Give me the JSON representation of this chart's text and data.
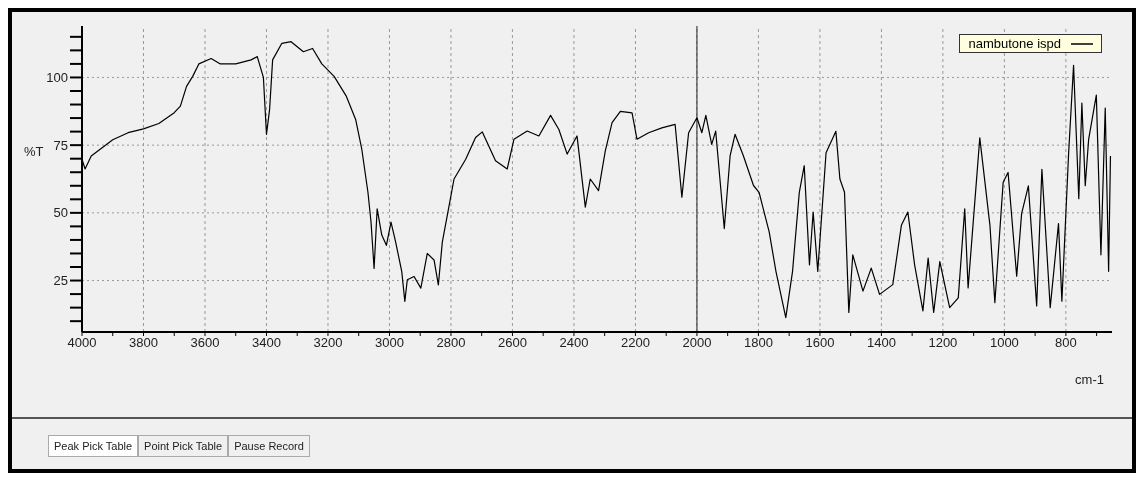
{
  "chart_data": {
    "type": "line",
    "xlabel": "cm-1",
    "ylabel": "%T",
    "legend": "top right",
    "grid": true,
    "marker": "none",
    "line_style": "solid",
    "xlim": [
      4000,
      650
    ],
    "ylim": [
      6,
      119
    ],
    "xticks": [
      4000,
      3800,
      3600,
      3400,
      3200,
      3000,
      2800,
      2600,
      2400,
      2200,
      2000,
      1800,
      1600,
      1400,
      1200,
      1000,
      800,
      {
        "value": 3900,
        "label": null
      },
      {
        "value": 3700,
        "label": null
      },
      {
        "value": 3500,
        "label": null
      },
      {
        "value": 3300,
        "label": null
      },
      {
        "value": 3100,
        "label": null
      },
      {
        "value": 2900,
        "label": null
      },
      {
        "value": 2700,
        "label": null
      },
      {
        "value": 2500,
        "label": null
      },
      {
        "value": 2300,
        "label": null
      },
      {
        "value": 2100,
        "label": null
      },
      {
        "value": 1900,
        "label": null
      },
      {
        "value": 1700,
        "label": null
      },
      {
        "value": 1500,
        "label": null
      },
      {
        "value": 1300,
        "label": null
      },
      {
        "value": 1100,
        "label": null
      },
      {
        "value": 900,
        "label": null
      },
      {
        "value": 700,
        "label": null
      }
    ],
    "yticks": [
      25,
      50,
      75,
      100,
      {
        "value": 10,
        "label": null
      },
      {
        "value": 15,
        "label": null
      },
      {
        "value": 20,
        "label": null
      },
      {
        "value": 30,
        "label": null
      },
      {
        "value": 35,
        "label": null
      },
      {
        "value": 40,
        "label": null
      },
      {
        "value": 45,
        "label": null
      },
      {
        "value": 55,
        "label": null
      },
      {
        "value": 60,
        "label": null
      },
      {
        "value": 65,
        "label": null
      },
      {
        "value": 70,
        "label": null
      },
      {
        "value": 80,
        "label": null
      },
      {
        "value": 85,
        "label": null
      },
      {
        "value": 90,
        "label": null
      },
      {
        "value": 95,
        "label": null
      },
      {
        "value": 105,
        "label": null
      },
      {
        "value": 110,
        "label": null
      },
      {
        "value": 115,
        "label": null
      }
    ],
    "ref_lines": [
      {
        "axis": "x",
        "value": 2000,
        "color": "#404040",
        "line_style": "solid"
      }
    ],
    "annotations": [
      "Peak Pick Table",
      "Point Pick Table",
      "Pause Record"
    ],
    "series": [
      {
        "name": "nambutone ispd",
        "color": "#000000",
        "x": [
          4000,
          3990,
          3970,
          3900,
          3850,
          3800,
          3750,
          3700,
          3680,
          3660,
          3640,
          3620,
          3580,
          3550,
          3500,
          3450,
          3430,
          3410,
          3400,
          3390,
          3380,
          3350,
          3320,
          3280,
          3250,
          3220,
          3180,
          3140,
          3110,
          3090,
          3070,
          3060,
          3050,
          3040,
          3025,
          3010,
          2995,
          2980,
          2960,
          2950,
          2942,
          2920,
          2898,
          2877,
          2855,
          2841,
          2828,
          2806,
          2790,
          2752,
          2720,
          2698,
          2655,
          2617,
          2595,
          2552,
          2514,
          2476,
          2449,
          2422,
          2390,
          2363,
          2347,
          2320,
          2298,
          2276,
          2249,
          2211,
          2195,
          2157,
          2114,
          2071,
          2049,
          2027,
          2000,
          1984,
          1971,
          1952,
          1939,
          1911,
          1892,
          1876,
          1849,
          1816,
          1798,
          1765,
          1743,
          1711,
          1689,
          1667,
          1651,
          1634,
          1622,
          1607,
          1580,
          1548,
          1535,
          1520,
          1506,
          1493,
          1460,
          1433,
          1406,
          1363,
          1335,
          1314,
          1292,
          1265,
          1248,
          1230,
          1210,
          1178,
          1150,
          1129,
          1118,
          1080,
          1047,
          1031,
          1004,
          988,
          960,
          944,
          922,
          895,
          878,
          851,
          824,
          813,
          791,
          775,
          758,
          748,
          737,
          726,
          701,
          686,
          672,
          661,
          655
        ],
        "values": [
          69.8,
          66.2,
          71,
          77,
          79.6,
          81,
          83,
          87,
          89.4,
          96.7,
          100.4,
          105,
          107,
          105,
          105,
          106.5,
          107.7,
          100,
          79,
          88,
          106.5,
          112.6,
          113.2,
          109.5,
          110.7,
          105,
          100.4,
          93,
          84.5,
          73.5,
          57.6,
          46.6,
          29.5,
          51.5,
          41.8,
          38,
          46.6,
          39.3,
          28.3,
          17.3,
          25.3,
          26.5,
          22.2,
          35,
          32.6,
          23.4,
          39.3,
          52.7,
          62.5,
          69.8,
          77.8,
          79.9,
          69.2,
          66.2,
          77.2,
          80.2,
          78.4,
          86,
          80.8,
          71.7,
          78.4,
          52.1,
          62.5,
          58.2,
          72.9,
          83.3,
          87.5,
          86.9,
          77.2,
          79.6,
          81.4,
          82.7,
          55.8,
          79.6,
          85.1,
          79.6,
          86,
          75.3,
          80.2,
          44.2,
          71.1,
          79,
          71.1,
          60.1,
          57.6,
          43,
          28.4,
          11.3,
          28.4,
          57.6,
          67.4,
          30.8,
          50.3,
          28.4,
          72.2,
          80.1,
          62.5,
          57.6,
          13.2,
          34.5,
          21.1,
          29.6,
          19.9,
          23.5,
          45.4,
          50.3,
          30.8,
          13.8,
          33.3,
          13.2,
          32,
          15,
          18.6,
          51.5,
          22.3,
          77.7,
          45.4,
          16.8,
          61.3,
          64.9,
          26.6,
          49.7,
          60,
          15.6,
          66.1,
          15,
          46,
          17.4,
          72.2,
          104.5,
          55.2,
          90.5,
          60,
          77.1,
          93.5,
          34.5,
          88.7,
          28.4,
          71
        ]
      }
    ]
  }
}
